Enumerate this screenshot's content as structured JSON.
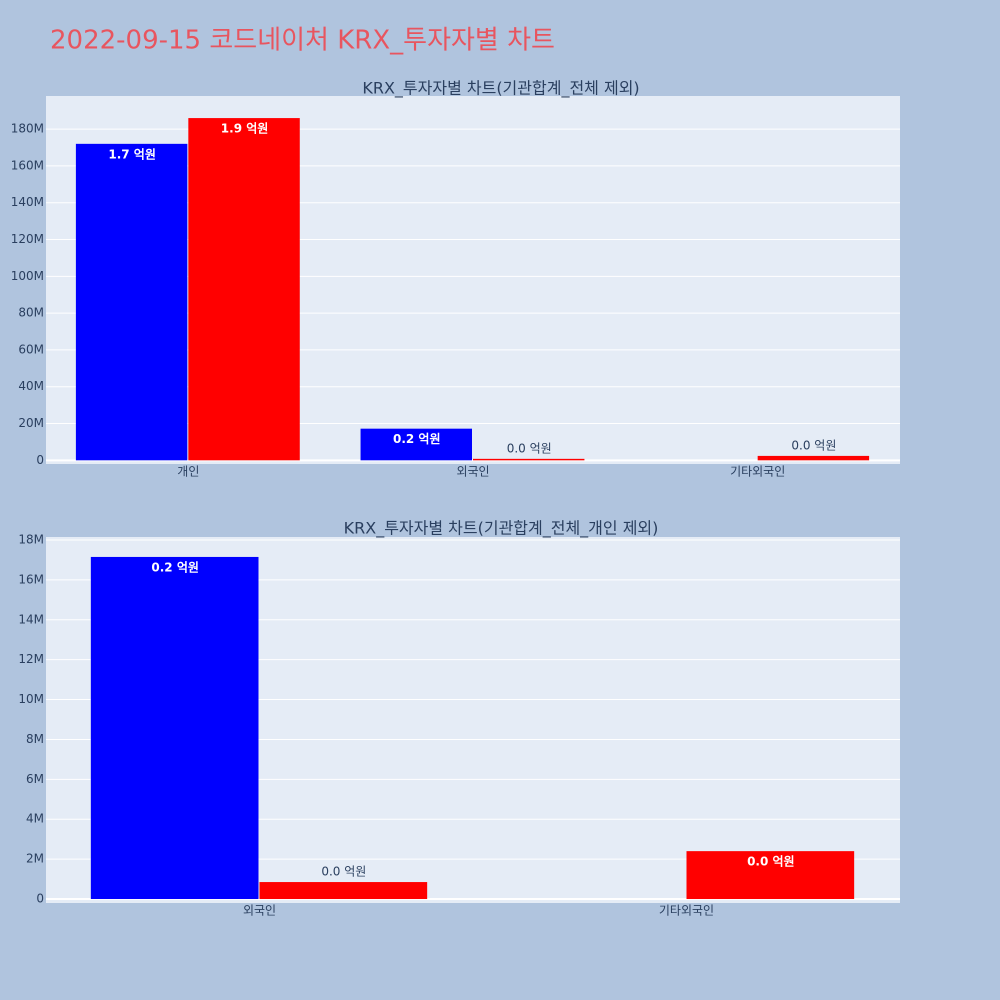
{
  "title": "2022-09-15 코드네이처 KRX_투자자별 차트",
  "chart_data": [
    {
      "type": "bar",
      "title": "KRX_투자자별 차트(기관합계_전체 제외)",
      "categories": [
        "개인",
        "외국인",
        "기타외국인"
      ],
      "series": [
        {
          "color": "#0000ff",
          "values": [
            172000000,
            17200000,
            null
          ],
          "value_labels": [
            "1.7 억원",
            "0.2 억원",
            null
          ]
        },
        {
          "color": "#ff0000",
          "values": [
            186000000,
            800000,
            2400000
          ],
          "value_labels": [
            "1.9 억원",
            "0.0 억원",
            "0.0 억원"
          ]
        }
      ],
      "ylim": [
        -2000000,
        198000000
      ],
      "yticks": [
        0,
        {
          "value": 20000000,
          "label": "20M"
        },
        {
          "value": 40000000,
          "label": "40M"
        },
        {
          "value": 60000000,
          "label": "60M"
        },
        {
          "value": 80000000,
          "label": "80M"
        },
        {
          "value": 100000000,
          "label": "100M"
        },
        {
          "value": 120000000,
          "label": "120M"
        },
        {
          "value": 140000000,
          "label": "140M"
        },
        {
          "value": 160000000,
          "label": "160M"
        },
        {
          "value": 180000000,
          "label": "180M"
        }
      ],
      "grid": true
    },
    {
      "type": "bar",
      "title": "KRX_투자자별 차트(기관합계_전체_개인 제외)",
      "categories": [
        "외국인",
        "기타외국인"
      ],
      "series": [
        {
          "color": "#0000ff",
          "values": [
            17150000,
            null
          ],
          "value_labels": [
            "0.2 억원",
            null
          ]
        },
        {
          "color": "#ff0000",
          "values": [
            850000,
            2400000
          ],
          "value_labels": [
            "0.0 억원",
            "0.0 억원"
          ]
        }
      ],
      "ylim": [
        -200000,
        18150000
      ],
      "yticks": [
        0,
        {
          "value": 2000000,
          "label": "2M"
        },
        {
          "value": 4000000,
          "label": "4M"
        },
        {
          "value": 6000000,
          "label": "6M"
        },
        {
          "value": 8000000,
          "label": "8M"
        },
        {
          "value": 10000000,
          "label": "10M"
        },
        {
          "value": 12000000,
          "label": "12M"
        },
        {
          "value": 14000000,
          "label": "14M"
        },
        {
          "value": 16000000,
          "label": "16M"
        },
        {
          "value": 18000000,
          "label": "18M"
        }
      ],
      "grid": true
    }
  ]
}
